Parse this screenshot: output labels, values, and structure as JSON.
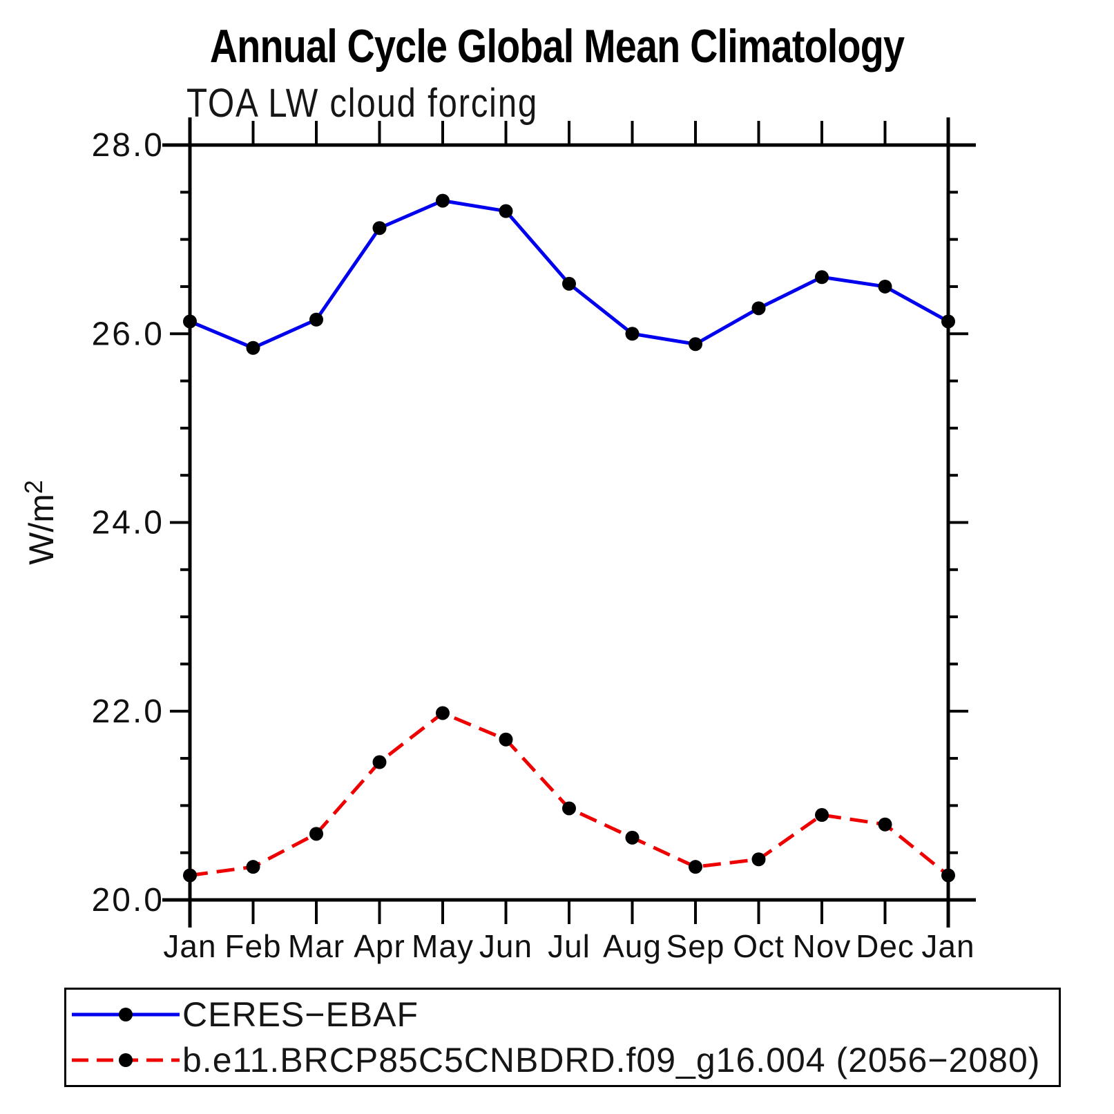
{
  "title": "Annual Cycle Global Mean Climatology",
  "subtitle": "TOA LW cloud forcing",
  "chart_data": {
    "type": "line",
    "categories": [
      "Jan",
      "Feb",
      "Mar",
      "Apr",
      "May",
      "Jun",
      "Jul",
      "Aug",
      "Sep",
      "Oct",
      "Nov",
      "Dec",
      "Jan"
    ],
    "series": [
      {
        "name": "CERES−EBAF",
        "color": "#0000EE",
        "line_style": "solid",
        "marker": "circle",
        "marker_color": "#000000",
        "values": [
          26.13,
          25.85,
          26.15,
          27.12,
          27.41,
          27.3,
          26.53,
          26.0,
          25.89,
          26.27,
          26.6,
          26.5,
          26.13
        ]
      },
      {
        "name": "b.e11.BRCP85C5CNBDRD.f09_g16.004 (2056−2080)",
        "color": "#EE0000",
        "line_style": "dashed",
        "marker": "circle",
        "marker_color": "#000000",
        "values": [
          20.26,
          20.35,
          20.7,
          21.46,
          21.98,
          21.7,
          20.97,
          20.66,
          20.35,
          20.43,
          20.9,
          20.8,
          20.26
        ]
      }
    ],
    "xlabel": "",
    "ylabel": "W/m²",
    "ylim": [
      20.0,
      28.0
    ],
    "yticks_major": {
      "values": [
        20.0,
        22.0,
        24.0,
        26.0,
        28.0
      ],
      "labels": [
        "20.0",
        "22.0",
        "24.0",
        "26.0",
        "28.0"
      ]
    },
    "yticks_minor_step": 0.5,
    "grid": false,
    "legend_position": "bottom",
    "frame_color": "#000000"
  }
}
